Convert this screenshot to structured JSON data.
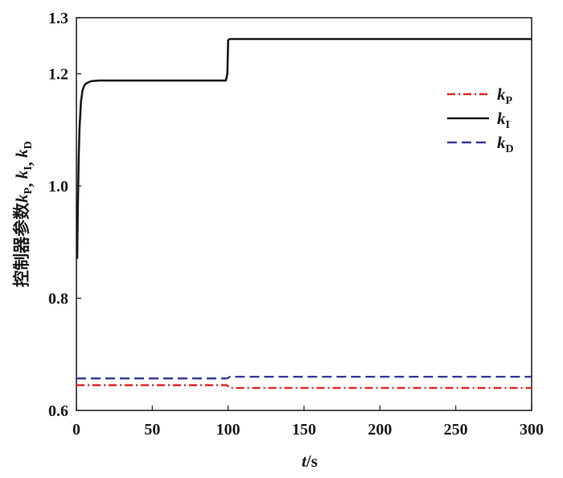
{
  "chart_data": {
    "type": "line",
    "xlabel": {
      "var": "t",
      "unit": "/s"
    },
    "ylabel": {
      "prefix": "控制器参数",
      "vars": [
        {
          "k": "k",
          "sub": "P"
        },
        {
          "k": "k",
          "sub": "I"
        },
        {
          "k": "k",
          "sub": "D"
        }
      ]
    },
    "xlim": [
      0,
      300
    ],
    "ylim": [
      0.6,
      1.3
    ],
    "xticks": [
      0,
      50,
      100,
      150,
      200,
      250,
      300
    ],
    "xtick_labels": [
      "0",
      "50",
      "100",
      "150",
      "200",
      "250",
      "300"
    ],
    "yticks": [
      0.6,
      0.8,
      1.0,
      1.2,
      1.3
    ],
    "ytick_labels": [
      "0.6",
      "0.8",
      "1.0",
      "1.2",
      "1.3"
    ],
    "grid": false,
    "legend": {
      "placement": "top-right"
    },
    "series": [
      {
        "name": "kP",
        "label_main": "k",
        "label_sub": "P",
        "color": "#e0262b",
        "dash": "dash-dot",
        "x": [
          0,
          99,
          100,
          101,
          300
        ],
        "y": [
          0.645,
          0.645,
          0.643,
          0.64,
          0.64
        ]
      },
      {
        "name": "kI",
        "label_main": "k",
        "label_sub": "I",
        "color": "#1a1a1a",
        "dash": "solid",
        "x": [
          0.5,
          1,
          1.5,
          2,
          3,
          4,
          5,
          6,
          8,
          10,
          15,
          20,
          30,
          50,
          98.5,
          99.5,
          100,
          101,
          150,
          200,
          250,
          300
        ],
        "y": [
          0.87,
          0.97,
          1.05,
          1.1,
          1.15,
          1.17,
          1.178,
          1.182,
          1.185,
          1.187,
          1.188,
          1.188,
          1.188,
          1.188,
          1.188,
          1.2,
          1.26,
          1.262,
          1.262,
          1.262,
          1.262,
          1.262
        ]
      },
      {
        "name": "kD",
        "label_main": "k",
        "label_sub": "D",
        "color": "#3a3d9a",
        "dash": "dash",
        "x": [
          0,
          99,
          100,
          101,
          300
        ],
        "y": [
          0.657,
          0.657,
          0.658,
          0.66,
          0.66
        ]
      }
    ]
  }
}
